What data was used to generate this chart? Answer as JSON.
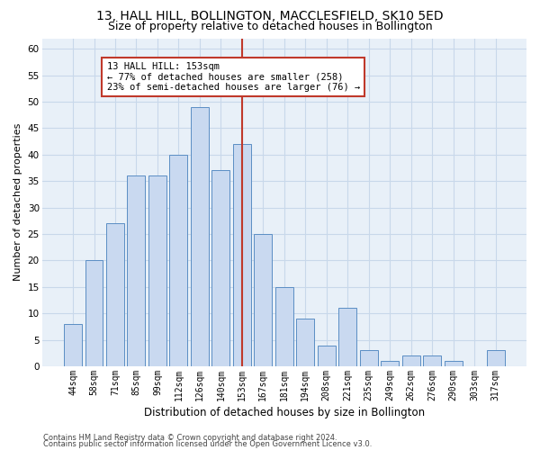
{
  "title": "13, HALL HILL, BOLLINGTON, MACCLESFIELD, SK10 5ED",
  "subtitle": "Size of property relative to detached houses in Bollington",
  "xlabel": "Distribution of detached houses by size in Bollington",
  "ylabel": "Number of detached properties",
  "categories": [
    "44sqm",
    "58sqm",
    "71sqm",
    "85sqm",
    "99sqm",
    "112sqm",
    "126sqm",
    "140sqm",
    "153sqm",
    "167sqm",
    "181sqm",
    "194sqm",
    "208sqm",
    "221sqm",
    "235sqm",
    "249sqm",
    "262sqm",
    "276sqm",
    "290sqm",
    "303sqm",
    "317sqm"
  ],
  "values": [
    8,
    20,
    27,
    36,
    36,
    40,
    49,
    37,
    42,
    25,
    15,
    9,
    4,
    11,
    3,
    1,
    2,
    2,
    1,
    0,
    3
  ],
  "bar_color": "#c9d9f0",
  "bar_edge_color": "#5b8ec4",
  "highlight_bar_index": 8,
  "highlight_line_color": "#c0392b",
  "annotation_line1": "13 HALL HILL: 153sqm",
  "annotation_line2": "← 77% of detached houses are smaller (258)",
  "annotation_line3": "23% of semi-detached houses are larger (76) →",
  "annotation_box_color": "#c0392b",
  "ylim": [
    0,
    62
  ],
  "yticks": [
    0,
    5,
    10,
    15,
    20,
    25,
    30,
    35,
    40,
    45,
    50,
    55,
    60
  ],
  "grid_color": "#c8d8ea",
  "background_color": "#e8f0f8",
  "footer_line1": "Contains HM Land Registry data © Crown copyright and database right 2024.",
  "footer_line2": "Contains public sector information licensed under the Open Government Licence v3.0.",
  "title_fontsize": 10,
  "subtitle_fontsize": 9,
  "xlabel_fontsize": 8.5,
  "ylabel_fontsize": 8,
  "annotation_fontsize": 7.5
}
